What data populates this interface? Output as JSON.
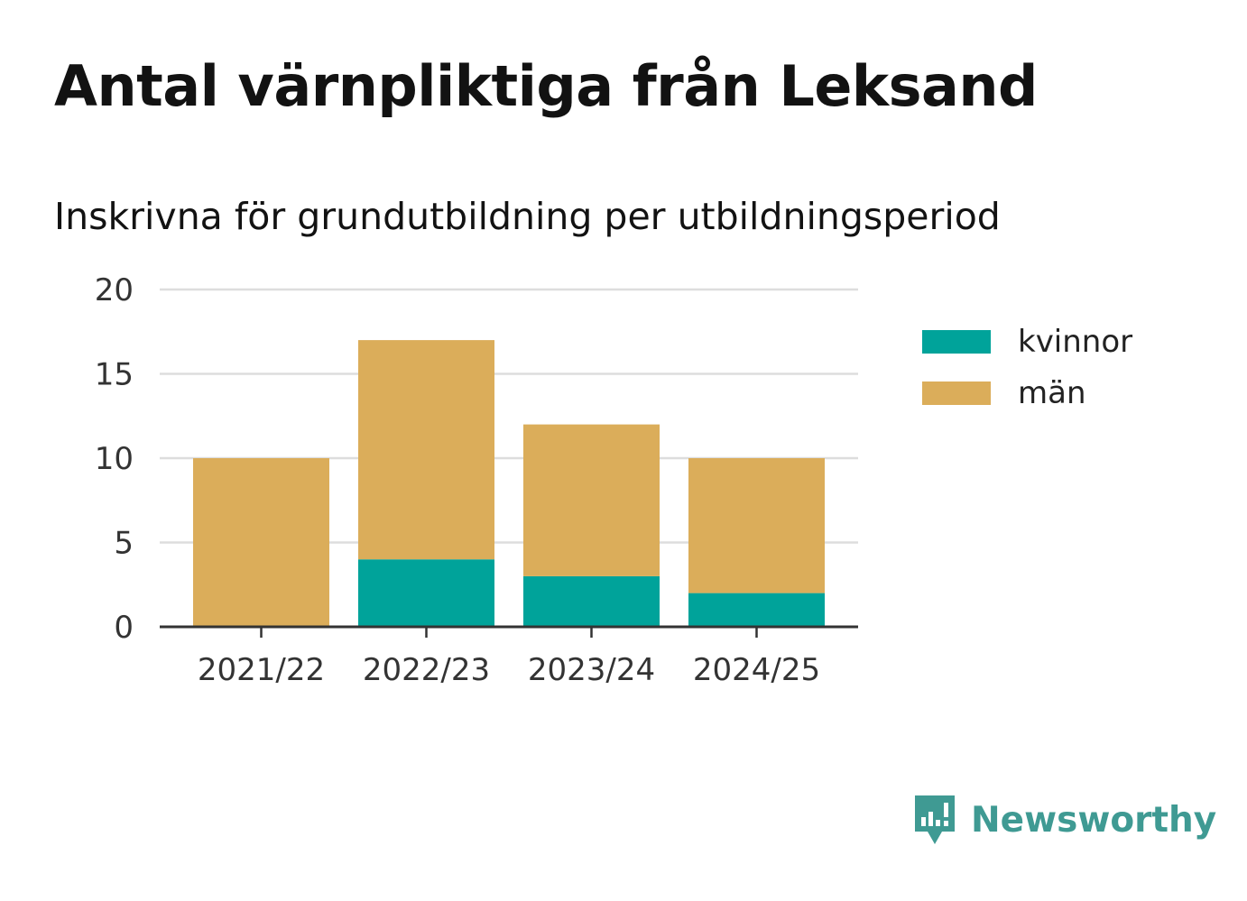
{
  "title": "Antal värnpliktiga från Leksand",
  "subtitle": "Inskrivna för grundutbildning per utbildningsperiod",
  "brand": {
    "name": "Newsworthy",
    "icon": "newsworthy-logo-icon",
    "color": "#3f9a93"
  },
  "colors": {
    "kvinnor": "#00a39a",
    "man": "#dbad5a",
    "grid": "#dddddd",
    "axis": "#333333"
  },
  "chart_data": {
    "type": "bar",
    "stacked": true,
    "title": "Antal värnpliktiga från Leksand",
    "subtitle": "Inskrivna för grundutbildning per utbildningsperiod",
    "xlabel": "",
    "ylabel": "",
    "ylim": [
      0,
      20
    ],
    "yticks": [
      "0",
      "5",
      "10",
      "15",
      "20"
    ],
    "grid": true,
    "legend_position": "right",
    "categories": [
      "2021/22",
      "2022/23",
      "2023/24",
      "2024/25"
    ],
    "series": [
      {
        "name": "kvinnor",
        "color": "#00a39a",
        "values": [
          0,
          4,
          3,
          2
        ]
      },
      {
        "name": "män",
        "color": "#dbad5a",
        "values": [
          10,
          13,
          9,
          8
        ]
      }
    ]
  }
}
